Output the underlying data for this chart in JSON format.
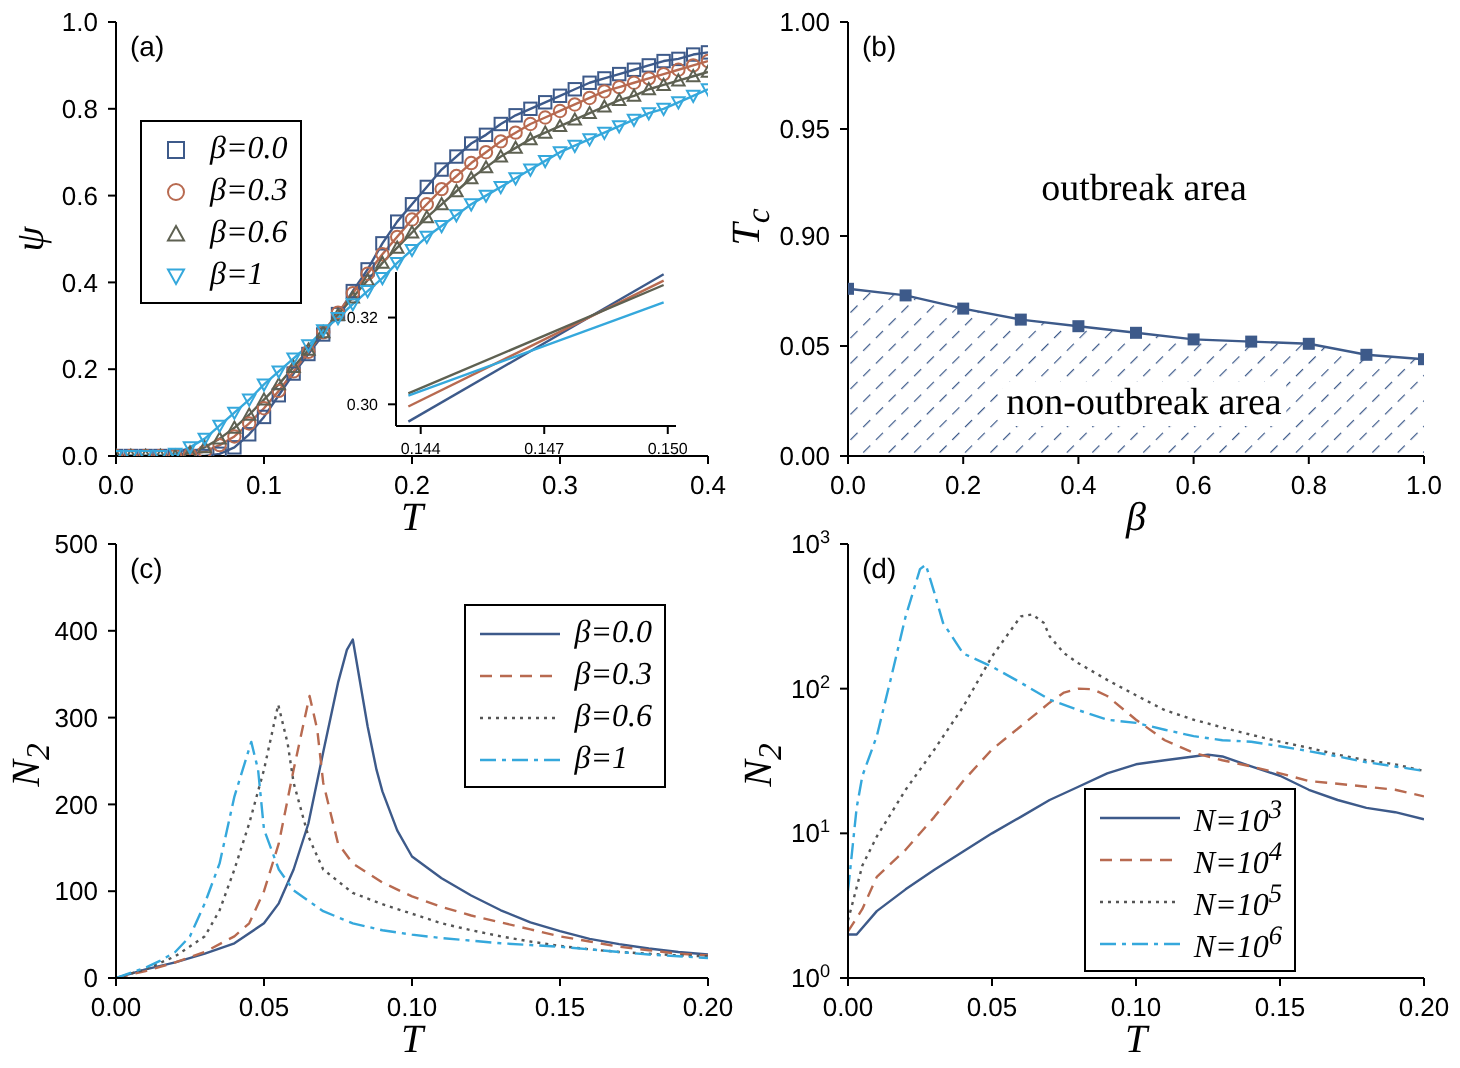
{
  "chart_data": [
    {
      "type": "line",
      "xlabel": "T",
      "ylabel": "ψ",
      "xlim": [
        0,
        0.4
      ],
      "ylim": [
        0,
        1
      ],
      "legend": "top left",
      "annotations": [
        "(a)"
      ],
      "xticks": [
        {
          "value": 0,
          "label": "0.0"
        },
        {
          "value": 0.1,
          "label": "0.1"
        },
        {
          "value": 0.2,
          "label": "0.2"
        },
        {
          "value": 0.3,
          "label": "0.3"
        },
        {
          "value": 0.4,
          "label": "0.4"
        }
      ],
      "yticks": [
        {
          "value": 0,
          "label": "0.0"
        },
        {
          "value": 0.2,
          "label": "0.2"
        },
        {
          "value": 0.4,
          "label": "0.4"
        },
        {
          "value": 0.6,
          "label": "0.6"
        },
        {
          "value": 0.8,
          "label": "0.8"
        },
        {
          "value": 1,
          "label": "1.0"
        }
      ],
      "x": [
        0,
        0.01,
        0.02,
        0.03,
        0.04,
        0.05,
        0.06,
        0.07,
        0.08,
        0.09,
        0.1,
        0.11,
        0.12,
        0.13,
        0.14,
        0.15,
        0.16,
        0.17,
        0.18,
        0.19,
        0.2,
        0.21,
        0.22,
        0.23,
        0.24,
        0.25,
        0.26,
        0.27,
        0.28,
        0.29,
        0.3,
        0.31,
        0.32,
        0.33,
        0.34,
        0.35,
        0.36,
        0.37,
        0.38,
        0.39,
        0.4
      ],
      "series": [
        {
          "name": "β=0.0",
          "color": "#3d5a8a",
          "marker": "square",
          "values": [
            0,
            0,
            0,
            0,
            0,
            0,
            0,
            0.005,
            0.02,
            0.05,
            0.09,
            0.14,
            0.19,
            0.235,
            0.28,
            0.327,
            0.38,
            0.43,
            0.49,
            0.54,
            0.58,
            0.62,
            0.66,
            0.69,
            0.72,
            0.74,
            0.765,
            0.785,
            0.8,
            0.815,
            0.83,
            0.845,
            0.86,
            0.87,
            0.88,
            0.89,
            0.9,
            0.91,
            0.915,
            0.925,
            0.93
          ]
        },
        {
          "name": "β=0.3",
          "color": "#b86a50",
          "marker": "circle",
          "values": [
            0,
            0,
            0,
            0,
            0,
            0.003,
            0.01,
            0.025,
            0.045,
            0.075,
            0.11,
            0.15,
            0.195,
            0.24,
            0.285,
            0.33,
            0.375,
            0.42,
            0.465,
            0.505,
            0.545,
            0.58,
            0.615,
            0.645,
            0.675,
            0.7,
            0.725,
            0.745,
            0.765,
            0.78,
            0.795,
            0.81,
            0.825,
            0.84,
            0.85,
            0.86,
            0.87,
            0.88,
            0.89,
            0.9,
            0.91
          ]
        },
        {
          "name": "β=0.6",
          "color": "#5e6152",
          "marker": "triangle",
          "values": [
            0,
            0,
            0,
            0,
            0,
            0.008,
            0.02,
            0.04,
            0.065,
            0.095,
            0.13,
            0.165,
            0.205,
            0.245,
            0.285,
            0.325,
            0.365,
            0.405,
            0.445,
            0.48,
            0.515,
            0.55,
            0.58,
            0.61,
            0.64,
            0.665,
            0.69,
            0.71,
            0.73,
            0.745,
            0.76,
            0.775,
            0.79,
            0.805,
            0.82,
            0.83,
            0.845,
            0.855,
            0.865,
            0.875,
            0.885
          ]
        },
        {
          "name": "β=1",
          "color": "#35a8dc",
          "marker": "triangle-down",
          "values": [
            0,
            0,
            0,
            0,
            0.005,
            0.02,
            0.04,
            0.07,
            0.1,
            0.13,
            0.165,
            0.195,
            0.225,
            0.255,
            0.29,
            0.318,
            0.35,
            0.38,
            0.41,
            0.445,
            0.475,
            0.505,
            0.53,
            0.555,
            0.58,
            0.6,
            0.62,
            0.64,
            0.66,
            0.68,
            0.7,
            0.715,
            0.73,
            0.745,
            0.76,
            0.775,
            0.79,
            0.8,
            0.815,
            0.83,
            0.845
          ]
        }
      ]
    },
    {
      "type": "line",
      "xlim": [
        0.1434,
        0.1502
      ],
      "ylim": [
        0.295,
        0.3305
      ],
      "xticks": [
        {
          "value": 0.144,
          "label": "0.144"
        },
        {
          "value": 0.147,
          "label": "0.147"
        },
        {
          "value": 0.15,
          "label": "0.150"
        }
      ],
      "yticks": [
        {
          "value": 0.3,
          "label": "0.30"
        },
        {
          "value": 0.32,
          "label": "0.32"
        }
      ],
      "x": [
        0.1437,
        0.1499
      ],
      "series": [
        {
          "color": "#3d5a8a",
          "values": [
            0.296,
            0.33
          ]
        },
        {
          "color": "#b86a50",
          "values": [
            0.2995,
            0.3285
          ]
        },
        {
          "color": "#5e6152",
          "values": [
            0.3025,
            0.3275
          ]
        },
        {
          "color": "#35a8dc",
          "values": [
            0.302,
            0.3235
          ]
        }
      ]
    },
    {
      "type": "area",
      "xlim": [
        0,
        1
      ],
      "ylim": [
        0.9,
        1
      ],
      "tick_labels": "y",
      "yticks": [
        {
          "value": 0.9,
          "label": "0.90"
        },
        {
          "value": 0.95,
          "label": "0.95"
        },
        {
          "value": 1,
          "label": "1.00"
        }
      ],
      "annotations": [
        "(b)",
        "outbreak area"
      ]
    },
    {
      "type": "area",
      "xlabel": "β",
      "ylabel": "T$_{c}$",
      "xlim": [
        0,
        1
      ],
      "ylim": [
        0,
        0.1
      ],
      "marker": "square",
      "xticks": [
        {
          "value": 0,
          "label": "0.0"
        },
        {
          "value": 0.2,
          "label": "0.2"
        },
        {
          "value": 0.4,
          "label": "0.4"
        },
        {
          "value": 0.6,
          "label": "0.6"
        },
        {
          "value": 0.8,
          "label": "0.8"
        },
        {
          "value": 1,
          "label": "1.0"
        }
      ],
      "yticks": [
        {
          "value": 0,
          "label": "0.00"
        },
        {
          "value": 0.05,
          "label": "0.05"
        }
      ],
      "annotations": [
        "non-outbreak area"
      ],
      "x": [
        0,
        0.1,
        0.2,
        0.3,
        0.4,
        0.5,
        0.6,
        0.7,
        0.8,
        0.9,
        1
      ],
      "series": [
        {
          "color": "#3d5a8a",
          "values": [
            0.076,
            0.073,
            0.067,
            0.062,
            0.059,
            0.056,
            0.053,
            0.052,
            0.051,
            0.046,
            0.044
          ]
        }
      ]
    },
    {
      "type": "line",
      "xlabel": "T",
      "ylabel": "N$_{2}$",
      "xlim": [
        0,
        0.2
      ],
      "ylim": [
        0,
        500
      ],
      "legend": "top right",
      "annotations": [
        "(c)"
      ],
      "xticks": [
        {
          "value": 0,
          "label": "0.00"
        },
        {
          "value": 0.05,
          "label": "0.05"
        },
        {
          "value": 0.1,
          "label": "0.10"
        },
        {
          "value": 0.15,
          "label": "0.15"
        },
        {
          "value": 0.2,
          "label": "0.20"
        }
      ],
      "yticks": [
        0,
        100,
        200,
        300,
        400,
        500
      ],
      "series": [
        {
          "name": "β=0.0",
          "color": "#3d5a8a",
          "line_style": "solid",
          "x": [
            0,
            0.01,
            0.02,
            0.03,
            0.04,
            0.05,
            0.055,
            0.06,
            0.065,
            0.07,
            0.075,
            0.078,
            0.08,
            0.082,
            0.085,
            0.088,
            0.09,
            0.095,
            0.1,
            0.11,
            0.12,
            0.13,
            0.14,
            0.15,
            0.16,
            0.17,
            0.18,
            0.19,
            0.2
          ],
          "values": [
            0,
            10,
            18,
            28,
            40,
            63,
            86,
            125,
            178,
            260,
            340,
            378,
            390,
            350,
            290,
            240,
            215,
            170,
            140,
            115,
            95,
            78,
            64,
            54,
            45,
            39,
            34,
            30,
            27
          ]
        },
        {
          "name": "β=0.3",
          "color": "#b86a50",
          "line_style": "dashed",
          "x": [
            0,
            0.01,
            0.02,
            0.03,
            0.04,
            0.045,
            0.05,
            0.055,
            0.06,
            0.0654,
            0.068,
            0.07,
            0.075,
            0.08,
            0.09,
            0.1,
            0.11,
            0.12,
            0.13,
            0.14,
            0.15,
            0.16,
            0.17,
            0.18,
            0.19,
            0.2
          ],
          "values": [
            0,
            8,
            18,
            30,
            48,
            63,
            100,
            155,
            240,
            325,
            286,
            225,
            155,
            132,
            110,
            94,
            82,
            72,
            64,
            56,
            48,
            42,
            36,
            32,
            28,
            26
          ]
        },
        {
          "name": "β=0.6",
          "color": "#555555",
          "line_style": "dotted",
          "x": [
            0,
            0.01,
            0.02,
            0.03,
            0.035,
            0.04,
            0.045,
            0.05,
            0.0548,
            0.058,
            0.06,
            0.065,
            0.07,
            0.08,
            0.09,
            0.1,
            0.11,
            0.12,
            0.13,
            0.14,
            0.15,
            0.16,
            0.17,
            0.18,
            0.19,
            0.2
          ],
          "values": [
            0,
            10,
            25,
            48,
            78,
            125,
            178,
            240,
            315,
            270,
            225,
            163,
            125,
            98,
            85,
            74,
            63,
            55,
            48,
            42,
            37,
            33,
            30,
            28,
            26,
            25
          ]
        },
        {
          "name": "β=1",
          "color": "#35a8dc",
          "line_style": "dashdot",
          "x": [
            0,
            0.01,
            0.015,
            0.02,
            0.025,
            0.03,
            0.035,
            0.04,
            0.0457,
            0.048,
            0.05,
            0.055,
            0.06,
            0.07,
            0.08,
            0.09,
            0.1,
            0.11,
            0.12,
            0.13,
            0.14,
            0.15,
            0.16,
            0.17,
            0.18,
            0.19,
            0.2
          ],
          "values": [
            0,
            12,
            20,
            30,
            48,
            86,
            132,
            209,
            272,
            240,
            171,
            125,
            101,
            77,
            63,
            55,
            50,
            46,
            43,
            40,
            38,
            36,
            33,
            30,
            27,
            25,
            23
          ]
        }
      ]
    },
    {
      "type": "line",
      "xlabel": "T",
      "ylabel": "N$_{2}$",
      "xlim": [
        0,
        0.2
      ],
      "ylim": [
        1,
        1000
      ],
      "log": "y",
      "legend": "bottom right",
      "annotations": [
        "(d)"
      ],
      "xticks": [
        {
          "value": 0,
          "label": "0.00"
        },
        {
          "value": 0.05,
          "label": "0.05"
        },
        {
          "value": 0.1,
          "label": "0.10"
        },
        {
          "value": 0.15,
          "label": "0.15"
        },
        {
          "value": 0.2,
          "label": "0.20"
        }
      ],
      "yticks": [
        {
          "value": 1,
          "label": "10$^{0}$"
        },
        {
          "value": 10,
          "label": "10$^{1}$"
        },
        {
          "value": 100,
          "label": "10$^{2}$"
        },
        {
          "value": 1000,
          "label": "10$^{3}$"
        }
      ],
      "series": [
        {
          "name": "N=10$^{3}$",
          "color": "#3d5a8a",
          "line_style": "solid",
          "x": [
            0,
            0.003,
            0.01,
            0.02,
            0.03,
            0.04,
            0.05,
            0.06,
            0.07,
            0.08,
            0.09,
            0.1,
            0.11,
            0.12,
            0.125,
            0.13,
            0.14,
            0.15,
            0.16,
            0.17,
            0.18,
            0.19,
            0.2
          ],
          "values": [
            2,
            2,
            2.9,
            4.1,
            5.6,
            7.5,
            10,
            13,
            17,
            21,
            26,
            30,
            32,
            34,
            35,
            34,
            29,
            25,
            20,
            17,
            15,
            14,
            12.5
          ]
        },
        {
          "name": "N=10$^{4}$",
          "color": "#b86a50",
          "line_style": "dashed",
          "x": [
            0,
            0.005,
            0.01,
            0.02,
            0.03,
            0.04,
            0.05,
            0.06,
            0.07,
            0.075,
            0.08,
            0.085,
            0.09,
            0.1,
            0.11,
            0.12,
            0.13,
            0.14,
            0.15,
            0.16,
            0.17,
            0.18,
            0.19,
            0.2
          ],
          "values": [
            2.1,
            3,
            5,
            7.7,
            13,
            23,
            38,
            55,
            80,
            94,
            100,
            99,
            89,
            61,
            44,
            36,
            32,
            29,
            26,
            23,
            22,
            21,
            20,
            18
          ]
        },
        {
          "name": "N=10$^{5}$",
          "color": "#555555",
          "line_style": "dotted",
          "x": [
            0,
            0.005,
            0.01,
            0.02,
            0.03,
            0.04,
            0.05,
            0.055,
            0.06,
            0.064,
            0.068,
            0.07,
            0.075,
            0.08,
            0.09,
            0.1,
            0.11,
            0.12,
            0.13,
            0.14,
            0.15,
            0.16,
            0.17,
            0.18,
            0.19,
            0.2
          ],
          "values": [
            2.5,
            6,
            9.5,
            20,
            38,
            75,
            167,
            230,
            316,
            326,
            285,
            230,
            176,
            150,
            115,
            90,
            71,
            61,
            54,
            48,
            43,
            39,
            35,
            32,
            30,
            27
          ]
        },
        {
          "name": "N=10$^{6}$",
          "color": "#35a8dc",
          "line_style": "dashdot",
          "x": [
            0,
            0.003,
            0.005,
            0.01,
            0.015,
            0.02,
            0.025,
            0.027,
            0.03,
            0.033,
            0.04,
            0.05,
            0.06,
            0.07,
            0.08,
            0.09,
            0.1,
            0.11,
            0.12,
            0.13,
            0.14,
            0.15,
            0.16,
            0.17,
            0.18,
            0.19,
            0.2
          ],
          "values": [
            4,
            15,
            25,
            47,
            120,
            315,
            670,
            720,
            460,
            285,
            175,
            142,
            110,
            84,
            71,
            61,
            58,
            52,
            47,
            44,
            43,
            40,
            37,
            34,
            31,
            29,
            27
          ]
        }
      ]
    }
  ]
}
